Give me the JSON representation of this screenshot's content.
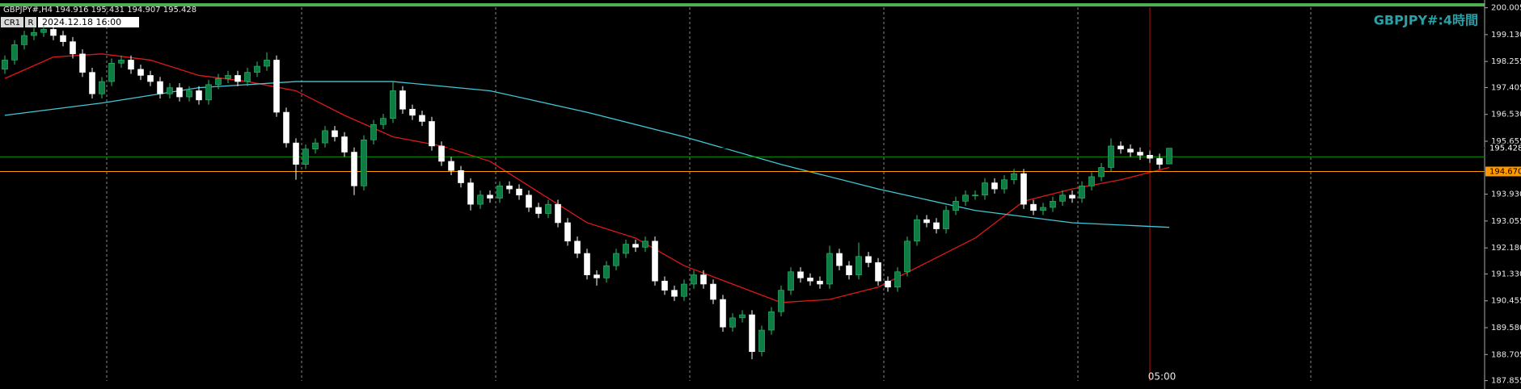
{
  "chart_data": {
    "type": "candlestick",
    "title": "GBPJPY#:4時間",
    "header": "GBPJPY#,H4  194.916 195.431 194.907 195.428",
    "toolbar": [
      "CR1",
      "R",
      "2024.12.18 16:00"
    ],
    "crosshair_label": "05:00",
    "ylim": [
      187.855,
      200.005
    ],
    "yticks": [
      200.005,
      {
        "value": 199.13,
        "label": "199.130"
      },
      198.255,
      197.405,
      {
        "value": 196.53,
        "label": "196.530"
      },
      195.655,
      {
        "value": 193.93,
        "label": "193.930"
      },
      193.055,
      {
        "value": 192.18,
        "label": "192.180"
      },
      {
        "value": 191.33,
        "label": "191.330"
      },
      190.455,
      {
        "value": 189.58,
        "label": "189.580"
      },
      188.705,
      187.855
    ],
    "up_color": "#0f7d43",
    "down_color": "#ffffff",
    "candles": [
      [
        198.0,
        198.45,
        197.85,
        198.3
      ],
      [
        198.3,
        198.95,
        198.15,
        198.8
      ],
      [
        198.8,
        199.25,
        198.65,
        199.1
      ],
      [
        199.1,
        199.35,
        198.95,
        199.2
      ],
      [
        199.2,
        199.45,
        199.05,
        199.3
      ],
      [
        199.3,
        199.45,
        198.95,
        199.1
      ],
      [
        199.1,
        199.25,
        198.75,
        198.9
      ],
      [
        198.9,
        199.05,
        198.35,
        198.5
      ],
      [
        198.5,
        198.65,
        197.75,
        197.9
      ],
      [
        197.9,
        198.05,
        197.05,
        197.2
      ],
      [
        197.2,
        197.75,
        197.05,
        197.6
      ],
      [
        197.6,
        198.35,
        197.45,
        198.2
      ],
      [
        198.2,
        198.45,
        198.05,
        198.3
      ],
      [
        198.3,
        198.45,
        197.85,
        198.0
      ],
      [
        198.0,
        198.15,
        197.65,
        197.8
      ],
      [
        197.8,
        197.95,
        197.45,
        197.6
      ],
      [
        197.6,
        197.75,
        197.05,
        197.2
      ],
      [
        197.2,
        197.55,
        197.05,
        197.4
      ],
      [
        197.4,
        197.55,
        196.95,
        197.1
      ],
      [
        197.1,
        197.45,
        196.95,
        197.3
      ],
      [
        197.3,
        197.45,
        196.85,
        197.0
      ],
      [
        197.0,
        197.65,
        196.85,
        197.5
      ],
      [
        197.5,
        197.85,
        197.35,
        197.7
      ],
      [
        197.7,
        197.95,
        197.55,
        197.8
      ],
      [
        197.8,
        197.95,
        197.45,
        197.6
      ],
      [
        197.6,
        198.05,
        197.45,
        197.9
      ],
      [
        197.9,
        198.25,
        197.75,
        198.1
      ],
      [
        198.1,
        198.55,
        197.95,
        198.3
      ],
      [
        198.3,
        198.45,
        196.45,
        196.6
      ],
      [
        196.6,
        196.75,
        195.45,
        195.6
      ],
      [
        195.6,
        195.75,
        194.4,
        194.9
      ],
      [
        194.9,
        195.55,
        194.75,
        195.4
      ],
      [
        195.4,
        195.75,
        195.25,
        195.6
      ],
      [
        195.6,
        196.15,
        195.45,
        196.0
      ],
      [
        196.0,
        196.15,
        195.65,
        195.8
      ],
      [
        195.8,
        195.95,
        195.15,
        195.3
      ],
      [
        195.3,
        195.45,
        193.9,
        194.2
      ],
      [
        194.2,
        195.85,
        194.05,
        195.7
      ],
      [
        195.7,
        196.35,
        195.55,
        196.2
      ],
      [
        196.2,
        196.55,
        196.05,
        196.4
      ],
      [
        196.4,
        197.6,
        196.25,
        197.3
      ],
      [
        197.3,
        197.45,
        196.55,
        196.7
      ],
      [
        196.7,
        196.85,
        196.35,
        196.5
      ],
      [
        196.5,
        196.65,
        196.15,
        196.3
      ],
      [
        196.3,
        196.45,
        195.35,
        195.5
      ],
      [
        195.5,
        195.65,
        194.85,
        195.0
      ],
      [
        195.0,
        195.15,
        194.55,
        194.7
      ],
      [
        194.7,
        194.85,
        194.15,
        194.3
      ],
      [
        194.3,
        194.45,
        193.4,
        193.6
      ],
      [
        193.6,
        194.05,
        193.45,
        193.9
      ],
      [
        193.9,
        194.05,
        193.65,
        193.8
      ],
      [
        193.8,
        194.35,
        193.65,
        194.2
      ],
      [
        194.2,
        194.35,
        193.95,
        194.1
      ],
      [
        194.1,
        194.25,
        193.75,
        193.9
      ],
      [
        193.9,
        194.05,
        193.35,
        193.5
      ],
      [
        193.5,
        193.65,
        193.15,
        193.3
      ],
      [
        193.3,
        193.75,
        193.15,
        193.6
      ],
      [
        193.6,
        193.75,
        192.85,
        193.0
      ],
      [
        193.0,
        193.15,
        192.25,
        192.4
      ],
      [
        192.4,
        192.55,
        191.85,
        192.0
      ],
      [
        192.0,
        192.15,
        191.15,
        191.3
      ],
      [
        191.3,
        191.45,
        190.95,
        191.2
      ],
      [
        191.2,
        191.75,
        191.05,
        191.6
      ],
      [
        191.6,
        192.15,
        191.45,
        192.0
      ],
      [
        192.0,
        192.45,
        191.85,
        192.3
      ],
      [
        192.3,
        192.45,
        192.05,
        192.2
      ],
      [
        192.2,
        192.55,
        192.05,
        192.4
      ],
      [
        192.4,
        192.55,
        190.95,
        191.1
      ],
      [
        191.1,
        191.25,
        190.65,
        190.8
      ],
      [
        190.8,
        190.95,
        190.45,
        190.6
      ],
      [
        190.6,
        191.15,
        190.45,
        191.0
      ],
      [
        191.0,
        191.45,
        190.85,
        191.3
      ],
      [
        191.3,
        191.45,
        190.85,
        191.0
      ],
      [
        191.0,
        191.15,
        190.35,
        190.5
      ],
      [
        190.5,
        190.65,
        189.45,
        189.6
      ],
      [
        189.6,
        190.05,
        189.45,
        189.9
      ],
      [
        189.9,
        190.15,
        189.75,
        190.0
      ],
      [
        190.0,
        190.15,
        188.55,
        188.8
      ],
      [
        188.8,
        189.65,
        188.65,
        189.5
      ],
      [
        189.5,
        190.25,
        189.35,
        190.1
      ],
      [
        190.1,
        190.95,
        189.95,
        190.8
      ],
      [
        190.8,
        191.55,
        190.65,
        191.4
      ],
      [
        191.4,
        191.55,
        191.05,
        191.2
      ],
      [
        191.2,
        191.35,
        190.95,
        191.1
      ],
      [
        191.1,
        191.25,
        190.85,
        191.0
      ],
      [
        191.0,
        192.25,
        190.85,
        192.0
      ],
      [
        192.0,
        192.15,
        191.45,
        191.6
      ],
      [
        191.6,
        191.75,
        191.15,
        191.3
      ],
      [
        191.3,
        192.35,
        191.15,
        191.9
      ],
      [
        191.9,
        192.05,
        191.55,
        191.7
      ],
      [
        191.7,
        191.85,
        190.95,
        191.1
      ],
      [
        191.1,
        191.25,
        190.75,
        190.9
      ],
      [
        190.9,
        191.55,
        190.75,
        191.4
      ],
      [
        191.4,
        192.55,
        191.25,
        192.4
      ],
      [
        192.4,
        193.25,
        192.25,
        193.1
      ],
      [
        193.1,
        193.25,
        192.85,
        193.0
      ],
      [
        193.0,
        193.15,
        192.65,
        192.8
      ],
      [
        192.8,
        193.55,
        192.65,
        193.4
      ],
      [
        193.4,
        193.85,
        193.25,
        193.7
      ],
      [
        193.7,
        194.05,
        193.55,
        193.9
      ],
      [
        193.9,
        194.05,
        193.75,
        193.9
      ],
      [
        193.9,
        194.45,
        193.75,
        194.3
      ],
      [
        194.3,
        194.45,
        193.95,
        194.1
      ],
      [
        194.1,
        194.55,
        193.95,
        194.4
      ],
      [
        194.4,
        194.75,
        194.25,
        194.6
      ],
      [
        194.6,
        194.75,
        193.45,
        193.6
      ],
      [
        193.6,
        193.75,
        193.25,
        193.4
      ],
      [
        193.4,
        193.65,
        193.25,
        193.5
      ],
      [
        193.5,
        193.85,
        193.35,
        193.7
      ],
      [
        193.7,
        194.05,
        193.55,
        193.9
      ],
      [
        193.9,
        194.05,
        193.65,
        193.8
      ],
      [
        193.8,
        194.35,
        193.65,
        194.2
      ],
      [
        194.2,
        194.65,
        194.05,
        194.5
      ],
      [
        194.5,
        194.95,
        194.35,
        194.8
      ],
      [
        194.8,
        195.75,
        194.65,
        195.5
      ],
      [
        195.5,
        195.65,
        195.25,
        195.4
      ],
      [
        195.4,
        195.55,
        195.15,
        195.3
      ],
      [
        195.3,
        195.45,
        195.05,
        195.2
      ],
      [
        195.2,
        195.35,
        194.95,
        195.1
      ],
      [
        195.1,
        195.25,
        194.75,
        194.9
      ],
      [
        194.916,
        195.431,
        194.907,
        195.428
      ]
    ],
    "series": [
      {
        "color": "#e01818",
        "x": [
          0,
          5,
          10,
          15,
          20,
          25,
          30,
          35,
          40,
          45,
          50,
          55,
          60,
          65,
          70,
          75,
          80,
          85,
          90,
          95,
          100,
          105,
          110,
          115,
          120
        ],
        "values": [
          197.7,
          198.4,
          198.5,
          198.3,
          197.8,
          197.6,
          197.3,
          196.5,
          195.8,
          195.5,
          195.0,
          194.0,
          193.0,
          192.5,
          191.6,
          191.0,
          190.4,
          190.5,
          190.9,
          191.7,
          192.5,
          193.7,
          194.1,
          194.4,
          194.8
        ]
      },
      {
        "color": "#40c8d8",
        "x": [
          0,
          10,
          20,
          30,
          40,
          50,
          60,
          70,
          80,
          90,
          100,
          110,
          120
        ],
        "values": [
          196.5,
          196.9,
          197.4,
          197.6,
          197.6,
          197.3,
          196.6,
          195.8,
          194.9,
          194.1,
          193.4,
          193.0,
          192.85
        ]
      }
    ],
    "price_lines": [
      {
        "value": 195.428,
        "label": "195.428",
        "color": "#000000"
      },
      {
        "value": 195.15,
        "color": "#00a000"
      },
      {
        "value": 194.67,
        "label": "194.670",
        "color": "#ff9900"
      }
    ]
  }
}
